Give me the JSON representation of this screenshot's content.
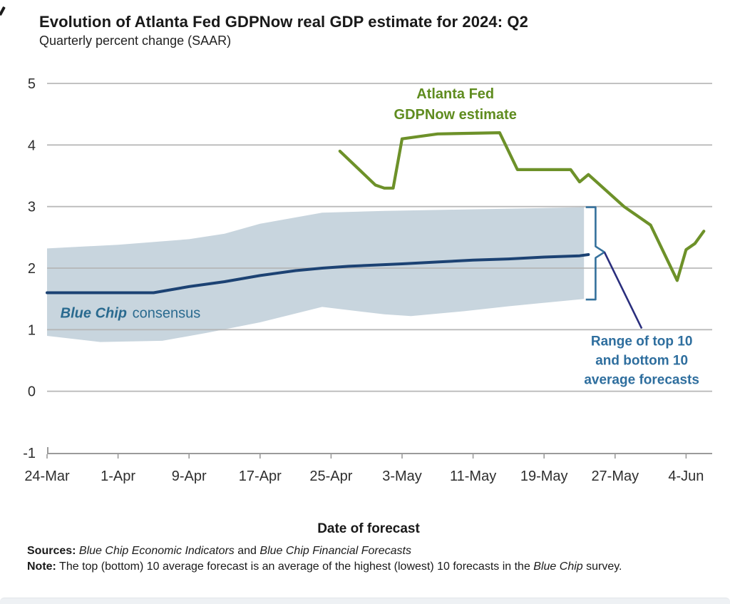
{
  "page": {
    "title": "Evolution of Atlanta Fed GDPNow real GDP estimate for 2024: Q2",
    "subtitle": "Quarterly percent change (SAAR)",
    "xlabel": "Date of forecast",
    "sources": {
      "label": "Sources:",
      "italic1": "Blue Chip Economic Indicators",
      "mid": " and ",
      "italic2": "Blue Chip Financial Forecasts"
    },
    "note": {
      "label": "Note:",
      "text1": "The top (bottom) 10 average forecast is an average of the highest (lowest) 10 forecasts in the ",
      "italic": "Blue Chip",
      "text2": " survey."
    }
  },
  "chart_data": {
    "type": "line",
    "x_unit": "days since 24-Mar-2024",
    "ylim": [
      -1,
      5
    ],
    "grid": true,
    "x_ticks": {
      "labels": [
        "24-Mar",
        "1-Apr",
        "9-Apr",
        "17-Apr",
        "25-Apr",
        "3-May",
        "11-May",
        "19-May",
        "27-May",
        "4-Jun"
      ],
      "days": [
        0,
        8,
        16,
        24,
        32,
        40,
        48,
        56,
        64,
        72
      ]
    },
    "y_ticks": [
      5,
      4,
      3,
      2,
      1,
      0,
      -1
    ],
    "series": [
      {
        "name": "Blue Chip range of top 10 and bottom 10 average forecasts",
        "type": "band",
        "color": "#c8d5de",
        "top": {
          "days": [
            0,
            8,
            16,
            20,
            24,
            31,
            38,
            46,
            54,
            60.5
          ],
          "values": [
            2.32,
            2.38,
            2.47,
            2.56,
            2.72,
            2.9,
            2.93,
            2.95,
            2.97,
            2.99
          ]
        },
        "bottom": {
          "days": [
            0,
            6,
            13,
            18,
            24,
            31,
            38,
            41,
            47,
            52,
            60.5
          ],
          "values": [
            0.9,
            0.8,
            0.82,
            0.95,
            1.12,
            1.37,
            1.25,
            1.22,
            1.3,
            1.38,
            1.5
          ]
        }
      },
      {
        "name": "Blue Chip consensus",
        "type": "line",
        "color": "#1c4273",
        "width": 4,
        "days": [
          0,
          8,
          12,
          16,
          20,
          24,
          28,
          31,
          34,
          40,
          44,
          48,
          52,
          56,
          60,
          61
        ],
        "values": [
          1.6,
          1.6,
          1.6,
          1.7,
          1.78,
          1.88,
          1.96,
          2.0,
          2.03,
          2.07,
          2.1,
          2.13,
          2.15,
          2.18,
          2.2,
          2.22
        ]
      },
      {
        "name": "Atlanta Fed GDPNow estimate",
        "type": "line",
        "color": "#6d9129",
        "width": 4.2,
        "days": [
          33,
          37,
          38,
          39,
          40,
          44,
          51,
          53,
          59,
          60,
          61,
          65,
          68,
          71,
          72,
          73,
          74
        ],
        "values": [
          3.9,
          3.35,
          3.3,
          3.3,
          4.1,
          4.18,
          4.2,
          3.6,
          3.6,
          3.4,
          3.52,
          3.0,
          2.7,
          1.8,
          2.3,
          2.4,
          2.6
        ]
      }
    ],
    "annotations": {
      "gdpnow": {
        "line1": "Atlanta Fed",
        "line2": "GDPNow estimate",
        "anchor_day": 46,
        "anchor_value": 4.65,
        "color": "#5f8c1f"
      },
      "bluechip": {
        "italic": "Blue Chip",
        "rest": " consensus",
        "anchor_day": 1.5,
        "anchor_value": 1.26,
        "color": "#2a6a8f"
      },
      "range": {
        "line1": "Range of top 10",
        "line2": "and bottom 10",
        "line3": "average forecasts",
        "anchor_day": 67,
        "anchor_value": 0.5,
        "color": "#2e6e9e"
      },
      "bracket": {
        "day": 61.8,
        "cap_day": 60.7,
        "tip_day": 62.8,
        "top": 2.99,
        "bottom": 1.49,
        "mid": 2.26,
        "color": "#35719c",
        "leader_color": "#2a2e7d",
        "leader_end_day": 67,
        "leader_end_value": 1.02
      }
    },
    "axis_colors": {
      "grid": "#b3b3b3",
      "axis": "#9b9b9b",
      "tick_text": "#2e2e2e"
    }
  }
}
